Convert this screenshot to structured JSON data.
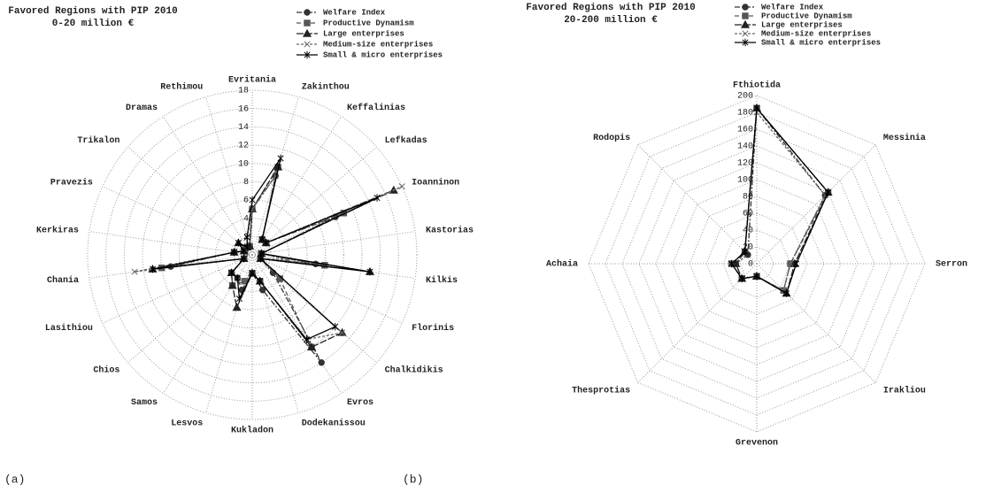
{
  "chart_data": [
    {
      "type": "radar",
      "title": "Favored Regions with PIP 2010",
      "subtitle": "0-20 million €",
      "caption": "(a)",
      "grid_shape": "circle",
      "categories": [
        "Evritania",
        "Zakinthou",
        "Keffalinias",
        "Lefkadas",
        "Ioanninon",
        "Kastorias",
        "Kilkis",
        "Florinis",
        "Chalkidikis",
        "Evros",
        "Dodekanissou",
        "Kukladon",
        "Lesvos",
        "Samos",
        "Chios",
        "Lasithiou",
        "Chania",
        "Kerkiras",
        "Pravezis",
        "Trikalon",
        "Dramas",
        "Rethimou"
      ],
      "ylim": [
        0,
        18
      ],
      "yticks": [
        0,
        2,
        4,
        6,
        8,
        10,
        12,
        14,
        16,
        18
      ],
      "series": [
        {
          "name": "Welfare Index",
          "color": "#333333",
          "dash": "6 2 2 2",
          "marker": "circle",
          "values": [
            5,
            9,
            2,
            2,
            10,
            1,
            7,
            1,
            3,
            14,
            4,
            2,
            4,
            3,
            3,
            1,
            9,
            2,
            1,
            1,
            1,
            1
          ]
        },
        {
          "name": "Productive Dynamism",
          "color": "#555555",
          "dash": "5 3",
          "marker": "square",
          "values": [
            5,
            10,
            2,
            2,
            11,
            1,
            8,
            1,
            4,
            12,
            3,
            2,
            3,
            4,
            3,
            1,
            10,
            2,
            1,
            1,
            1,
            1
          ]
        },
        {
          "name": "Large enterprises",
          "color": "#222222",
          "dash": "8 2",
          "marker": "triangle",
          "values": [
            5,
            10,
            2,
            2,
            17,
            1,
            13,
            1,
            13,
            12,
            3,
            2,
            6,
            4,
            3,
            1,
            11,
            2,
            1,
            2,
            1,
            1
          ]
        },
        {
          "name": "Medium-size enterprises",
          "color": "#666666",
          "dash": "3 2",
          "marker": "x",
          "values": [
            5,
            9,
            2,
            2,
            18,
            1,
            4,
            1,
            13,
            11,
            3,
            2,
            3,
            3,
            3,
            1,
            13,
            2,
            1,
            1,
            1,
            2
          ]
        },
        {
          "name": "Small & micro enterprises",
          "color": "#000000",
          "dash": "none",
          "marker": "star",
          "values": [
            6,
            11,
            2,
            2,
            15,
            1,
            13,
            1,
            12,
            11,
            3,
            2,
            5,
            3,
            3,
            1,
            11,
            2,
            1,
            2,
            1,
            2
          ]
        }
      ]
    },
    {
      "type": "radar",
      "title": "Favored Regions with PIP 2010",
      "subtitle": "20-200 million €",
      "caption": "(b)",
      "grid_shape": "polygon",
      "categories": [
        "Fthiotida",
        "Messinia",
        "Serron",
        "Irakliou",
        "Grevenon",
        "Thesprotias",
        "Achaia",
        "Rodopis"
      ],
      "ylim": [
        0,
        200
      ],
      "yticks": [
        0,
        20,
        40,
        60,
        80,
        100,
        120,
        140,
        160,
        180,
        200
      ],
      "series": [
        {
          "name": "Welfare Index",
          "color": "#333333",
          "dash": "6 2 2 2",
          "marker": "circle",
          "values": [
            185,
            115,
            40,
            45,
            15,
            25,
            25,
            15
          ]
        },
        {
          "name": "Productive Dynamism",
          "color": "#555555",
          "dash": "5 3",
          "marker": "square",
          "values": [
            185,
            120,
            40,
            45,
            15,
            25,
            30,
            20
          ]
        },
        {
          "name": "Large enterprises",
          "color": "#222222",
          "dash": "8 2",
          "marker": "triangle",
          "values": [
            185,
            120,
            45,
            50,
            15,
            25,
            25,
            20
          ]
        },
        {
          "name": "Medium-size enterprises",
          "color": "#666666",
          "dash": "3 2",
          "marker": "x",
          "values": [
            180,
            115,
            40,
            45,
            15,
            25,
            30,
            20
          ]
        },
        {
          "name": "Small & micro enterprises",
          "color": "#000000",
          "dash": "none",
          "marker": "star",
          "values": [
            185,
            120,
            47,
            50,
            15,
            25,
            30,
            20
          ]
        }
      ]
    }
  ]
}
